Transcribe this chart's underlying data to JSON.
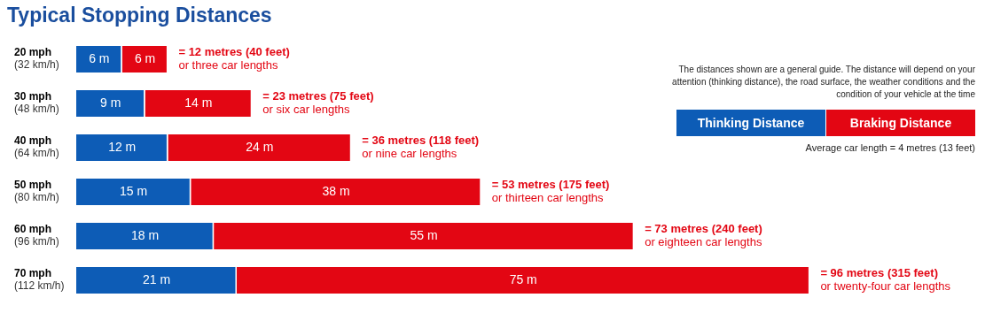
{
  "chart_data": {
    "type": "bar",
    "orientation": "horizontal",
    "stacked": true,
    "title": "Typical Stopping Distances",
    "categories": [
      "20 mph\n(32 km/h)",
      "30 mph\n(48 km/h)",
      "40 mph\n(64 km/h)",
      "50 mph\n(80 km/h)",
      "60 mph\n(96 km/h)",
      "70 mph\n(112 km/h)"
    ],
    "series": [
      {
        "name": "Thinking Distance",
        "color": "#0d5cb6",
        "values": [
          6,
          9,
          12,
          15,
          18,
          21
        ],
        "value_labels": [
          "6 m",
          "9 m",
          "12 m",
          "15 m",
          "18 m",
          "21 m"
        ]
      },
      {
        "name": "Braking Distance",
        "color": "#e30613",
        "values": [
          6,
          14,
          24,
          38,
          55,
          75
        ],
        "value_labels": [
          "6 m",
          "14 m",
          "24 m",
          "38 m",
          "55 m",
          "75 m"
        ]
      }
    ],
    "totals": [
      "= 12 metres (40 feet)\nor three car lengths",
      "= 23 metres (75 feet)\nor six car lengths",
      "= 36 metres (118 feet)\nor nine car lengths",
      "= 53 metres (175 feet)\nor thirteen car lengths",
      "= 73 metres (240 feet)\nor eighteen car lengths",
      "= 96 metres (315 feet)\nor twenty-four car lengths"
    ],
    "xlim": [
      0,
      118
    ],
    "tick_labels": "y",
    "grid": false,
    "legend": "top right",
    "annotations": [
      "The distances shown are a general guide. The distance will depend on your attention (thinking distance), the road surface, the weather conditions and the condition of your vehicle at the time",
      "Average car length = 4 metres (13 feet)"
    ]
  }
}
